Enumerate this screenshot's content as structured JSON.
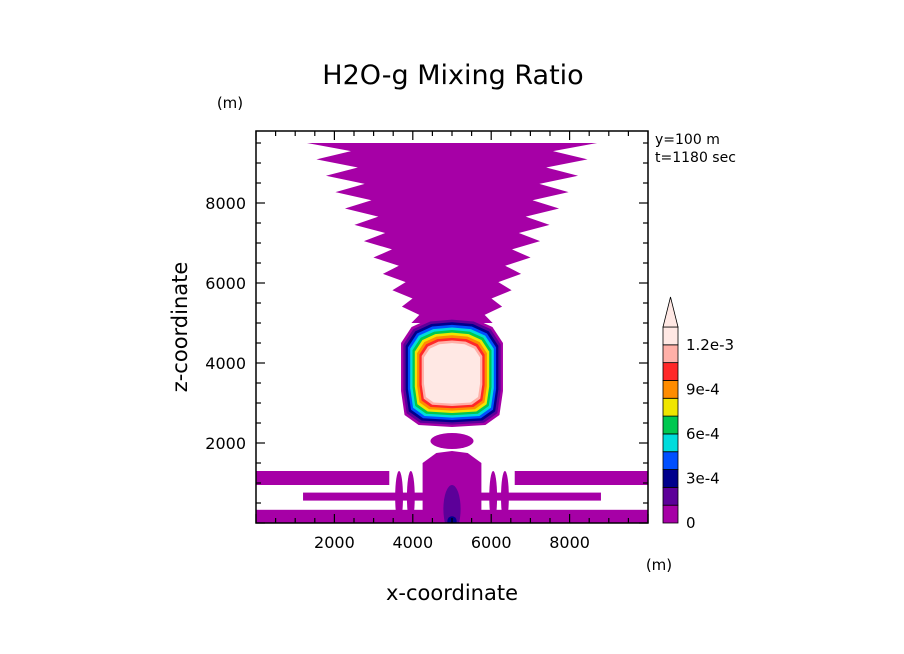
{
  "chart_data": {
    "type": "heatmap",
    "title": "H2O-g Mixing Ratio",
    "xlabel": "x-coordinate",
    "ylabel": "z-coordinate",
    "x_unit": "(m)",
    "y_unit": "(m)",
    "annotations": [
      "y=100 m",
      "t=1180 sec"
    ],
    "xlim": [
      0,
      10000
    ],
    "ylim": [
      0,
      9800
    ],
    "x_ticks": [
      2000,
      4000,
      6000,
      8000
    ],
    "y_ticks": [
      2000,
      4000,
      6000,
      8000
    ],
    "x_tick_labels": [
      "2000",
      "4000",
      "6000",
      "8000"
    ],
    "y_tick_labels": [
      "2000",
      "4000",
      "6000",
      "8000"
    ],
    "colorbar": {
      "levels": [
        0,
        0.00015,
        0.0003,
        0.00045,
        0.0006,
        0.00075,
        0.0009,
        0.00105,
        0.0012
      ],
      "label_values": [
        0,
        0.0003,
        0.0006,
        0.0009,
        0.0012
      ],
      "labels": [
        "0",
        "3e-4",
        "6e-4",
        "9e-4",
        "1.2e-3"
      ],
      "colors": [
        "#a600a6",
        "#5c0099",
        "#00008c",
        "#0050ff",
        "#00dcdc",
        "#00c850",
        "#f0e600",
        "#ff8c00",
        "#ff2828",
        "#ffb0a8",
        "#ffe8e4"
      ]
    },
    "plume": {
      "center_x": 5000,
      "main_body": {
        "x_range": [
          3700,
          6300
        ],
        "z_range": [
          2600,
          4700
        ]
      },
      "upper_envelope": {
        "x_range": [
          1300,
          8700
        ],
        "z_range": [
          5000,
          9500
        ]
      },
      "ground_layer": {
        "z_range": [
          0,
          1300
        ]
      }
    }
  }
}
